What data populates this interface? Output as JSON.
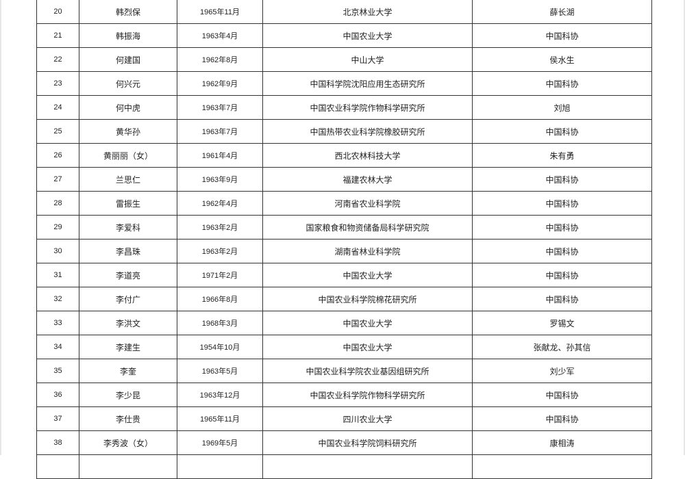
{
  "rows": [
    {
      "no": "20",
      "name": "韩烈保",
      "birth": "1965年11月",
      "unit": "北京林业大学",
      "recommender": "薛长湖"
    },
    {
      "no": "21",
      "name": "韩振海",
      "birth": "1963年4月",
      "unit": "中国农业大学",
      "recommender": "中国科协"
    },
    {
      "no": "22",
      "name": "何建国",
      "birth": "1962年8月",
      "unit": "中山大学",
      "recommender": "侯水生"
    },
    {
      "no": "23",
      "name": "何兴元",
      "birth": "1962年9月",
      "unit": "中国科学院沈阳应用生态研究所",
      "recommender": "中国科协"
    },
    {
      "no": "24",
      "name": "何中虎",
      "birth": "1963年7月",
      "unit": "中国农业科学院作物科学研究所",
      "recommender": "刘旭"
    },
    {
      "no": "25",
      "name": "黄华孙",
      "birth": "1963年7月",
      "unit": "中国热带农业科学院橡胶研究所",
      "recommender": "中国科协"
    },
    {
      "no": "26",
      "name": "黄丽丽（女）",
      "birth": "1961年4月",
      "unit": "西北农林科技大学",
      "recommender": "朱有勇"
    },
    {
      "no": "27",
      "name": "兰思仁",
      "birth": "1963年9月",
      "unit": "福建农林大学",
      "recommender": "中国科协"
    },
    {
      "no": "28",
      "name": "雷振生",
      "birth": "1962年4月",
      "unit": "河南省农业科学院",
      "recommender": "中国科协"
    },
    {
      "no": "29",
      "name": "李爱科",
      "birth": "1963年2月",
      "unit": "国家粮食和物资储备局科学研究院",
      "recommender": "中国科协"
    },
    {
      "no": "30",
      "name": "李昌珠",
      "birth": "1963年2月",
      "unit": "湖南省林业科学院",
      "recommender": "中国科协"
    },
    {
      "no": "31",
      "name": "李道亮",
      "birth": "1971年2月",
      "unit": "中国农业大学",
      "recommender": "中国科协"
    },
    {
      "no": "32",
      "name": "李付广",
      "birth": "1966年8月",
      "unit": "中国农业科学院棉花研究所",
      "recommender": "中国科协"
    },
    {
      "no": "33",
      "name": "李洪文",
      "birth": "1968年3月",
      "unit": "中国农业大学",
      "recommender": "罗锡文"
    },
    {
      "no": "34",
      "name": "李建生",
      "birth": "1954年10月",
      "unit": "中国农业大学",
      "recommender": "张献龙、孙其信"
    },
    {
      "no": "35",
      "name": "李奎",
      "birth": "1963年5月",
      "unit": "中国农业科学院农业基因组研究所",
      "recommender": "刘少军"
    },
    {
      "no": "36",
      "name": "李少昆",
      "birth": "1963年12月",
      "unit": "中国农业科学院作物科学研究所",
      "recommender": "中国科协"
    },
    {
      "no": "37",
      "name": "李仕贵",
      "birth": "1965年11月",
      "unit": "四川农业大学",
      "recommender": "中国科协"
    },
    {
      "no": "38",
      "name": "李秀波（女）",
      "birth": "1969年5月",
      "unit": "中国农业科学院饲料研究所",
      "recommender": "康相涛"
    }
  ]
}
